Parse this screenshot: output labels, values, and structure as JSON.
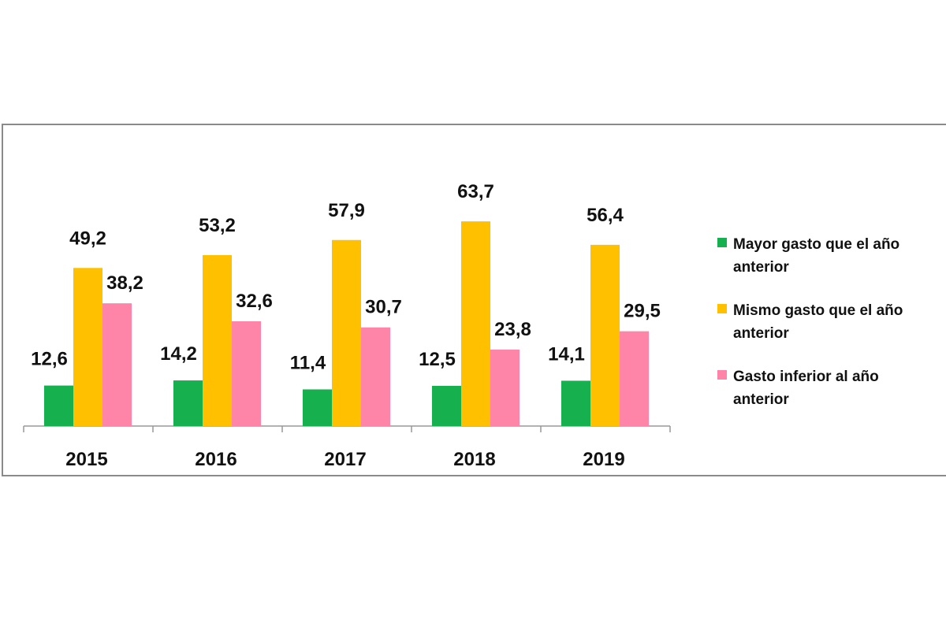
{
  "chart_data": {
    "type": "bar",
    "title": "",
    "xlabel": "",
    "ylabel": "",
    "ylim": [
      0,
      70
    ],
    "grid": false,
    "legend_position": "right",
    "categories": [
      "2015",
      "2016",
      "2017",
      "2018",
      "2019"
    ],
    "series": [
      {
        "name": "Mayor gasto que el año anterior",
        "legend_lines": [
          "Mayor gasto que el año",
          "anterior"
        ],
        "color": "#17b04f",
        "values": [
          12.6,
          14.2,
          11.4,
          12.5,
          14.1
        ],
        "labels": [
          "12,6",
          "14,2",
          "11,4",
          "12,5",
          "14,1"
        ]
      },
      {
        "name": "Mismo gasto que el año anterior",
        "legend_lines": [
          "Mismo gasto que el año",
          "anterior"
        ],
        "color": "#ffc000",
        "values": [
          49.2,
          53.2,
          57.9,
          63.7,
          56.4
        ],
        "labels": [
          "49,2",
          "53,2",
          "57,9",
          "63,7",
          "56,4"
        ]
      },
      {
        "name": "Gasto inferior al año anterior",
        "legend_lines": [
          "Gasto inferior al año",
          "anterior"
        ],
        "color": "#ff85a8",
        "values": [
          38.2,
          32.6,
          30.7,
          23.8,
          29.5
        ],
        "labels": [
          "38,2",
          "32,6",
          "30,7",
          "23,8",
          "29,5"
        ]
      }
    ]
  }
}
